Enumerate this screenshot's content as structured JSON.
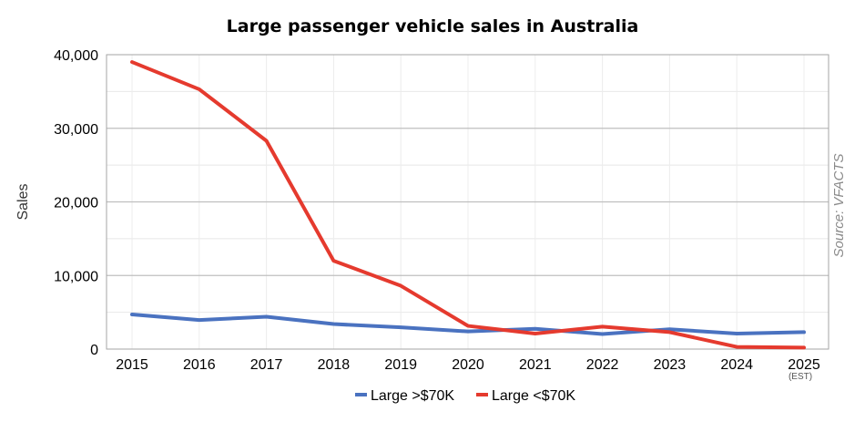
{
  "chart_data": {
    "type": "line",
    "title": "Large passenger vehicle sales in Australia",
    "xlabel": "",
    "ylabel": "Sales",
    "x": [
      "2015",
      "2016",
      "2017",
      "2018",
      "2019",
      "2020",
      "2021",
      "2022",
      "2023",
      "2024",
      "2025"
    ],
    "x_note": "(EST)",
    "ylim": [
      0,
      40000
    ],
    "yticks": [
      "0",
      "10,000",
      "20,000",
      "30,000",
      "40,000"
    ],
    "grid": true,
    "legend": "bottom",
    "source": "Source: VFACTS",
    "series": [
      {
        "name": "Large >$70K",
        "color": "#4a72c0",
        "values": [
          4700,
          3950,
          4400,
          3400,
          2950,
          2400,
          2750,
          2050,
          2700,
          2100,
          2300
        ]
      },
      {
        "name": "Large <$70K",
        "color": "#e53a2e",
        "values": [
          39000,
          35300,
          28300,
          12000,
          8600,
          3150,
          2100,
          3050,
          2300,
          300,
          200
        ]
      }
    ]
  }
}
